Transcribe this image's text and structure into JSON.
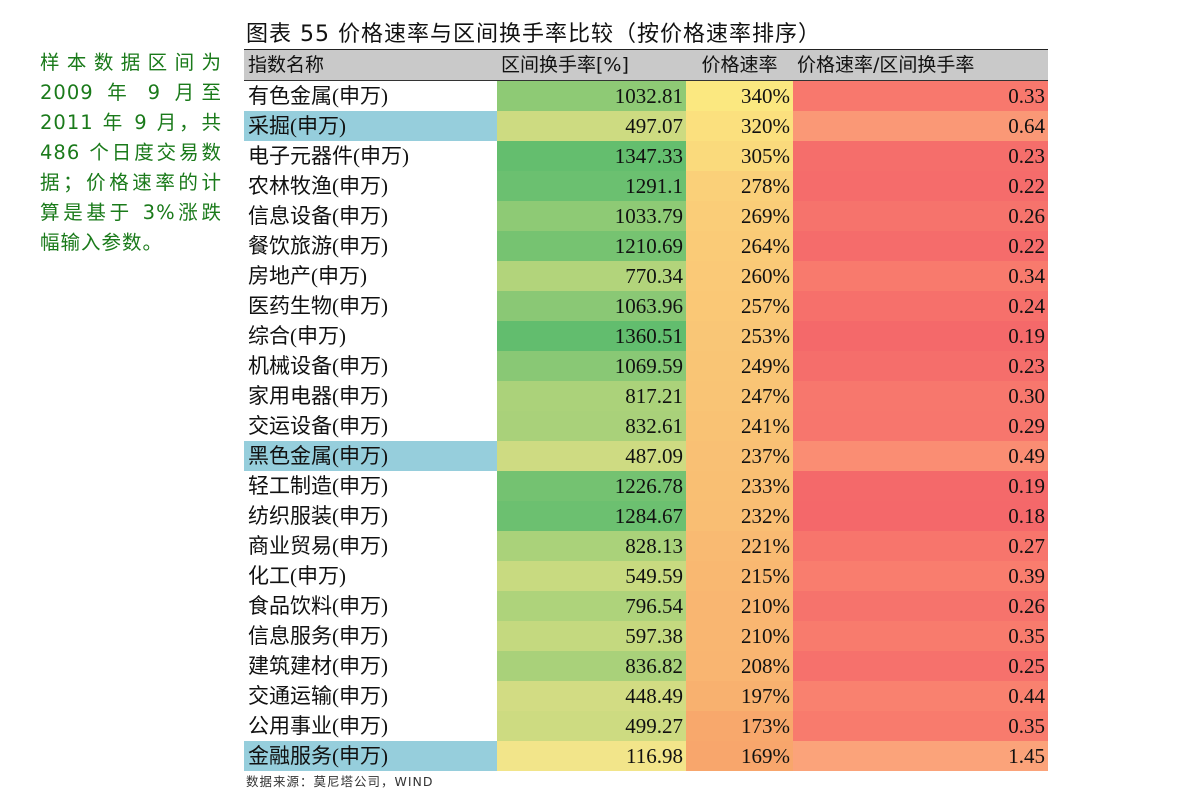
{
  "sidenote": "样本数据区间为2009 年 9 月至2011 年 9 月，共486 个日度交易数据；价格速率的计算是基于 3%涨跌幅输入参数。",
  "title": "图表 55 价格速率与区间换手率比较（按价格速率排序）",
  "headers": [
    "指数名称",
    "区间换手率[%]",
    "价格速率",
    "价格速率/区间换手率"
  ],
  "rows": [
    {
      "name": "有色金属(申万)",
      "turnover": "1032.81",
      "speed": "340%",
      "ratio": "0.33",
      "highlight": false
    },
    {
      "name": "采掘(申万)",
      "turnover": "497.07",
      "speed": "320%",
      "ratio": "0.64",
      "highlight": true
    },
    {
      "name": "电子元器件(申万)",
      "turnover": "1347.33",
      "speed": "305%",
      "ratio": "0.23",
      "highlight": false
    },
    {
      "name": "农林牧渔(申万)",
      "turnover": "1291.1",
      "speed": "278%",
      "ratio": "0.22",
      "highlight": false
    },
    {
      "name": "信息设备(申万)",
      "turnover": "1033.79",
      "speed": "269%",
      "ratio": "0.26",
      "highlight": false
    },
    {
      "name": "餐饮旅游(申万)",
      "turnover": "1210.69",
      "speed": "264%",
      "ratio": "0.22",
      "highlight": false
    },
    {
      "name": "房地产(申万)",
      "turnover": "770.34",
      "speed": "260%",
      "ratio": "0.34",
      "highlight": false
    },
    {
      "name": "医药生物(申万)",
      "turnover": "1063.96",
      "speed": "257%",
      "ratio": "0.24",
      "highlight": false
    },
    {
      "name": "综合(申万)",
      "turnover": "1360.51",
      "speed": "253%",
      "ratio": "0.19",
      "highlight": false
    },
    {
      "name": "机械设备(申万)",
      "turnover": "1069.59",
      "speed": "249%",
      "ratio": "0.23",
      "highlight": false
    },
    {
      "name": "家用电器(申万)",
      "turnover": "817.21",
      "speed": "247%",
      "ratio": "0.30",
      "highlight": false
    },
    {
      "name": "交运设备(申万)",
      "turnover": "832.61",
      "speed": "241%",
      "ratio": "0.29",
      "highlight": false
    },
    {
      "name": "黑色金属(申万)",
      "turnover": "487.09",
      "speed": "237%",
      "ratio": "0.49",
      "highlight": true
    },
    {
      "name": "轻工制造(申万)",
      "turnover": "1226.78",
      "speed": "233%",
      "ratio": "0.19",
      "highlight": false
    },
    {
      "name": "纺织服装(申万)",
      "turnover": "1284.67",
      "speed": "232%",
      "ratio": "0.18",
      "highlight": false
    },
    {
      "name": "商业贸易(申万)",
      "turnover": "828.13",
      "speed": "221%",
      "ratio": "0.27",
      "highlight": false
    },
    {
      "name": "化工(申万)",
      "turnover": "549.59",
      "speed": "215%",
      "ratio": "0.39",
      "highlight": false
    },
    {
      "name": "食品饮料(申万)",
      "turnover": "796.54",
      "speed": "210%",
      "ratio": "0.26",
      "highlight": false
    },
    {
      "name": "信息服务(申万)",
      "turnover": "597.38",
      "speed": "210%",
      "ratio": "0.35",
      "highlight": false
    },
    {
      "name": "建筑建材(申万)",
      "turnover": "836.82",
      "speed": "208%",
      "ratio": "0.25",
      "highlight": false
    },
    {
      "name": "交通运输(申万)",
      "turnover": "448.49",
      "speed": "197%",
      "ratio": "0.44",
      "highlight": false
    },
    {
      "name": "公用事业(申万)",
      "turnover": "499.27",
      "speed": "173%",
      "ratio": "0.35",
      "highlight": false
    },
    {
      "name": "金融服务(申万)",
      "turnover": "116.98",
      "speed": "169%",
      "ratio": "1.45",
      "highlight": true
    }
  ],
  "source": "数据来源：莫尼塔公司，WIND",
  "colors": {
    "highlight_name_bg": "#96cedc",
    "header_bg": "#c9c9c9"
  }
}
